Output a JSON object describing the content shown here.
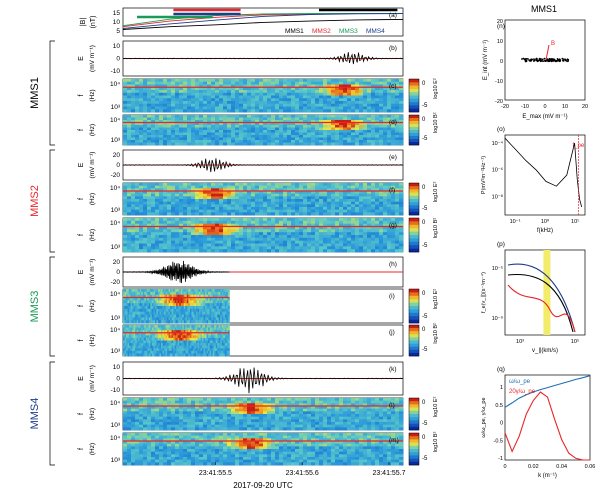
{
  "figure": {
    "time_axis_label": "2017-09-20 UTC",
    "time_ticks": [
      "23:41:55.5",
      "23:41:55.6",
      "23:41:55.7"
    ],
    "right_title": "MMS1",
    "spacecraft": [
      {
        "name": "MMS1",
        "color": "#000000"
      },
      {
        "name": "MMS2",
        "color": "#e8262a"
      },
      {
        "name": "MMS3",
        "color": "#1a9a56"
      },
      {
        "name": "MMS4",
        "color": "#1e3b8c"
      }
    ],
    "colorbar": {
      "ticks": [
        "0",
        "-5"
      ],
      "label_e": "log10 E²",
      "label_b": "log10 B²"
    }
  },
  "panels": {
    "a": {
      "letter": "(a)",
      "ylabel_top": "|B|",
      "ylabel_bottom": "(nT)",
      "yticks": [
        "15",
        "10",
        "5"
      ],
      "legend": [
        "MMS1",
        "MMS2",
        "MMS3",
        "MMS4"
      ]
    },
    "b": {
      "letter": "(b)",
      "ylabel": "E",
      "unit": "(mV m⁻¹)",
      "yticks": [
        "10",
        "0",
        "-10"
      ]
    },
    "c": {
      "letter": "(c)",
      "ylabel": "f",
      "unit": "(Hz)",
      "yticks": [
        "10⁴",
        "10³"
      ]
    },
    "d": {
      "letter": "(d)",
      "ylabel": "f",
      "unit": "(Hz)",
      "yticks": [
        "10⁴",
        "10³"
      ]
    },
    "e": {
      "letter": "(e)",
      "ylabel": "E",
      "unit": "(mV m⁻¹)",
      "yticks": [
        "20",
        "0",
        "-20"
      ]
    },
    "f": {
      "letter": "(f)",
      "ylabel": "f",
      "unit": "(Hz)",
      "yticks": [
        "10⁴",
        "10³"
      ]
    },
    "g": {
      "letter": "(g)",
      "ylabel": "f",
      "unit": "(Hz)",
      "yticks": [
        "10⁴",
        "10³"
      ]
    },
    "h": {
      "letter": "(h)",
      "ylabel": "E",
      "unit": "(mV m⁻¹)",
      "yticks": [
        "20",
        "0",
        "-20"
      ]
    },
    "i": {
      "letter": "(i)",
      "ylabel": "f",
      "unit": "(Hz)",
      "yticks": [
        "10⁴",
        "10³"
      ]
    },
    "j": {
      "letter": "(j)",
      "ylabel": "f",
      "unit": "(Hz)",
      "yticks": [
        "10⁴",
        "10³"
      ]
    },
    "k": {
      "letter": "(k)",
      "ylabel": "E",
      "unit": "(mV m⁻¹)",
      "yticks": [
        "10",
        "0",
        "-10"
      ]
    },
    "l": {
      "letter": "(l)",
      "ylabel": "f",
      "unit": "(Hz)",
      "yticks": [
        "10⁴",
        "10³"
      ]
    },
    "m": {
      "letter": "(m)",
      "ylabel": "f",
      "unit": "(Hz)",
      "yticks": [
        "10⁴",
        "10³"
      ]
    },
    "n": {
      "letter": "(n)",
      "xlabel": "E_max (mV m⁻¹)",
      "ylabel": "E_int (mV m⁻¹)",
      "xticks": [
        "-20",
        "-10",
        "0",
        "10",
        "20"
      ],
      "yticks": [
        "20",
        "10",
        "0",
        "-10",
        "-20"
      ],
      "annotation": "B"
    },
    "o": {
      "letter": "(o)",
      "xlabel": "f(kHz)",
      "ylabel": "P(mV²m⁻²Hz⁻¹)",
      "xticks": [
        "10⁻¹",
        "10⁰",
        "10¹"
      ],
      "yticks": [
        "10⁻⁴",
        "10⁻⁶",
        "10⁻⁸"
      ],
      "annotation": "f_pe"
    },
    "p": {
      "letter": "(p)",
      "xlabel": "v_∥(km/s)",
      "ylabel": "f_e(v_∥)(s⁻¹m⁻⁴)",
      "xticks": [
        "10³",
        "10⁵"
      ],
      "yticks": [
        "10⁻⁵",
        "10⁻⁹"
      ]
    },
    "q": {
      "letter": "(q)",
      "xlabel": "k (m⁻¹)",
      "ylabel": "ω/ω_pe, γ/ω_pe",
      "xticks": [
        "0",
        "0.02",
        "0.04",
        "0.06"
      ],
      "yticks": [
        "1",
        "0.5",
        "0",
        "-0.5",
        "-1"
      ],
      "legend": [
        "ω/ω_pe",
        "20γ/ω_pe"
      ]
    }
  },
  "chart_data": [
    {
      "type": "line",
      "panel": "a",
      "ylabel": "|B| (nT)",
      "ylim": [
        0,
        15
      ],
      "x": [
        0.0,
        0.1,
        0.2,
        0.3,
        0.4,
        0.5,
        0.6
      ],
      "series": [
        {
          "name": "MMS1",
          "values": [
            3.5,
            5.0,
            6.0,
            7.3,
            8.0,
            8.6,
            8.9
          ]
        },
        {
          "name": "MMS2",
          "values": [
            5.0,
            8.0,
            10.0,
            11.3,
            11.8,
            12.0,
            12.1
          ]
        },
        {
          "name": "MMS3",
          "values": [
            5.5,
            9.0,
            11.0,
            11.8,
            12.0,
            12.1,
            12.1
          ]
        },
        {
          "name": "MMS4",
          "values": [
            4.0,
            6.5,
            8.5,
            10.5,
            11.5,
            11.9,
            12.0
          ]
        }
      ]
    },
    {
      "type": "line",
      "panel": "q",
      "xlabel": "k (m⁻¹)",
      "xlim": [
        0,
        0.06
      ],
      "ylim": [
        -1,
        1.5
      ],
      "x": [
        0,
        0.005,
        0.01,
        0.015,
        0.02,
        0.025,
        0.03,
        0.035,
        0.04,
        0.045,
        0.05,
        0.055,
        0.06
      ],
      "series": [
        {
          "name": "ω/ω_pe",
          "values": [
            0.55,
            0.68,
            0.82,
            0.92,
            1.0,
            1.07,
            1.13,
            1.19,
            1.25,
            1.31,
            1.37,
            1.42,
            1.48
          ]
        },
        {
          "name": "20γ/ω_pe",
          "values": [
            -0.2,
            -0.75,
            -0.3,
            0.35,
            0.75,
            1.0,
            0.85,
            0.2,
            -0.4,
            -0.8,
            -0.95,
            -1.0,
            -1.0
          ]
        }
      ]
    },
    {
      "type": "line",
      "panel": "o",
      "xlabel": "f(kHz)",
      "xscale": "log",
      "yscale": "log",
      "x": [
        0.1,
        0.2,
        0.4,
        0.8,
        1.5,
        3,
        6,
        10,
        12,
        14,
        16
      ],
      "series": [
        {
          "name": "P",
          "values": [
            0.0002,
            4e-05,
            8e-06,
            2e-06,
            4e-07,
            2e-07,
            1e-06,
            0.0001,
            5e-07,
            3e-08,
            1e-08
          ]
        }
      ]
    }
  ]
}
